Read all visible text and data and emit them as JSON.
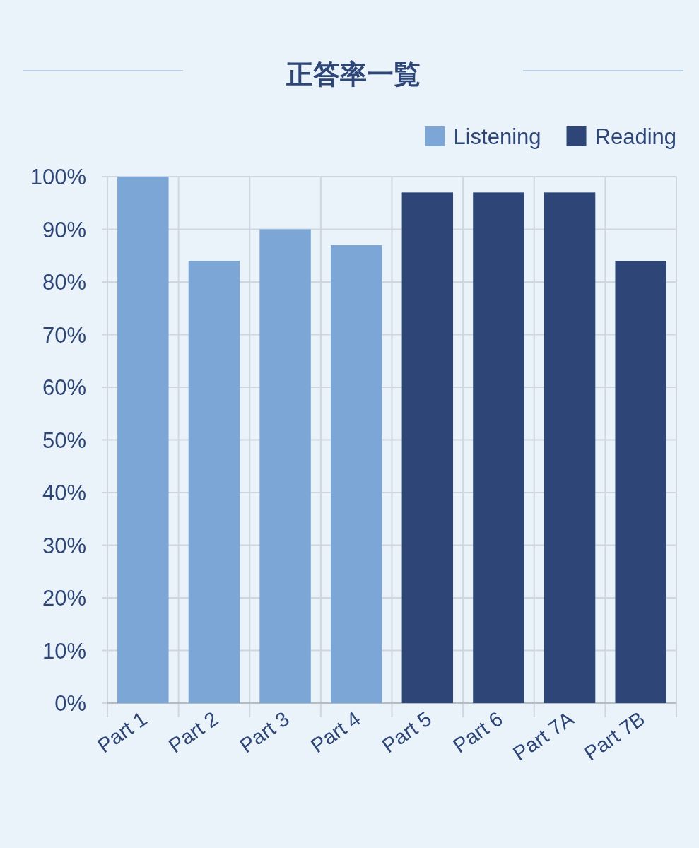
{
  "chart_data": {
    "type": "bar",
    "title": "正答率一覧",
    "categories": [
      "Part 1",
      "Part 2",
      "Part 3",
      "Part 4",
      "Part 5",
      "Part 6",
      "Part 7A",
      "Part 7B"
    ],
    "series": [
      {
        "name": "Listening",
        "color": "#7ba6d6",
        "values": [
          100,
          84,
          90,
          87,
          null,
          null,
          null,
          null
        ]
      },
      {
        "name": "Reading",
        "color": "#2d4677",
        "values": [
          null,
          null,
          null,
          null,
          97,
          97,
          97,
          84
        ]
      }
    ],
    "ylim": [
      0,
      100
    ],
    "yticks": [
      {
        "value": 0,
        "label": "0%"
      },
      {
        "value": 10,
        "label": "10%"
      },
      {
        "value": 20,
        "label": "20%"
      },
      {
        "value": 30,
        "label": "30%"
      },
      {
        "value": 40,
        "label": "40%"
      },
      {
        "value": 50,
        "label": "50%"
      },
      {
        "value": 60,
        "label": "60%"
      },
      {
        "value": 70,
        "label": "70%"
      },
      {
        "value": 80,
        "label": "80%"
      },
      {
        "value": 90,
        "label": "90%"
      },
      {
        "value": 100,
        "label": "100%"
      }
    ],
    "grid": true,
    "legend": "top right"
  }
}
